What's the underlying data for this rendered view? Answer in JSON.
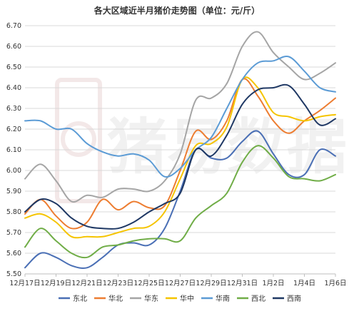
{
  "chart_data": {
    "type": "line",
    "title": "各大区域近半月猪价走势图（单位：元/斤）",
    "watermark": "猪易数据",
    "xlabel": "",
    "ylabel": "",
    "ylim": [
      5.5,
      6.7
    ],
    "y_ticks": [
      "5.50",
      "5.60",
      "5.70",
      "5.80",
      "5.90",
      "6.00",
      "6.10",
      "6.20",
      "6.30",
      "6.40",
      "6.50",
      "6.60",
      "6.70"
    ],
    "x": [
      "12月17日",
      "12月18日",
      "12月19日",
      "12月20日",
      "12月21日",
      "12月22日",
      "12月23日",
      "12月24日",
      "12月25日",
      "12月26日",
      "12月27日",
      "12月28日",
      "12月29日",
      "12月30日",
      "12月31日",
      "1月1日",
      "1月2日",
      "1月3日",
      "1月4日",
      "1月5日",
      "1月6日"
    ],
    "x_tick_labels": [
      "12月17日",
      "12月19日",
      "12月21日",
      "12月23日",
      "12月25日",
      "12月27日",
      "12月29日",
      "12月31日",
      "1月2日",
      "1月4日",
      "1月6日"
    ],
    "grid": true,
    "legend_position": "bottom",
    "series": [
      {
        "name": "东北",
        "color": "#4a6fb5",
        "values": [
          5.53,
          5.6,
          5.58,
          5.54,
          5.53,
          5.58,
          5.64,
          5.65,
          5.64,
          5.72,
          5.9,
          6.1,
          6.06,
          6.06,
          6.14,
          6.19,
          6.08,
          5.98,
          5.98,
          6.1,
          6.07
        ]
      },
      {
        "name": "华北",
        "color": "#ed7d31",
        "values": [
          5.79,
          5.86,
          5.78,
          5.72,
          5.75,
          5.86,
          5.81,
          5.85,
          5.82,
          5.83,
          6.0,
          6.19,
          6.15,
          6.24,
          6.44,
          6.36,
          6.24,
          6.18,
          6.24,
          6.29,
          6.35
        ]
      },
      {
        "name": "华东",
        "color": "#a5a5a5",
        "values": [
          5.96,
          6.03,
          5.95,
          5.85,
          5.88,
          5.87,
          5.91,
          5.91,
          5.9,
          5.95,
          6.08,
          6.34,
          6.35,
          6.42,
          6.6,
          6.67,
          6.57,
          6.5,
          6.44,
          6.47,
          6.52
        ]
      },
      {
        "name": "华中",
        "color": "#f5c400",
        "values": [
          5.77,
          5.79,
          5.75,
          5.68,
          5.68,
          5.68,
          5.7,
          5.72,
          5.73,
          5.8,
          5.96,
          6.12,
          6.13,
          6.21,
          6.44,
          6.4,
          6.28,
          6.26,
          6.24,
          6.26,
          6.27
        ]
      },
      {
        "name": "华南",
        "color": "#5b9bd5",
        "values": [
          6.24,
          6.24,
          6.2,
          6.2,
          6.13,
          6.09,
          6.07,
          6.08,
          6.05,
          5.97,
          6.01,
          6.1,
          6.16,
          6.3,
          6.44,
          6.52,
          6.53,
          6.55,
          6.48,
          6.4,
          6.38
        ]
      },
      {
        "name": "西北",
        "color": "#70ad47",
        "values": [
          5.63,
          5.72,
          5.66,
          5.6,
          5.58,
          5.63,
          5.64,
          5.66,
          5.67,
          5.67,
          5.66,
          5.77,
          5.83,
          5.89,
          6.04,
          6.12,
          6.06,
          5.97,
          5.96,
          5.95,
          5.98
        ]
      },
      {
        "name": "西南",
        "color": "#1f3864",
        "values": [
          5.8,
          5.86,
          5.84,
          5.77,
          5.73,
          5.72,
          5.72,
          5.75,
          5.8,
          5.84,
          5.89,
          6.1,
          6.07,
          6.17,
          6.32,
          6.39,
          6.4,
          6.41,
          6.32,
          6.22,
          6.25
        ]
      }
    ]
  }
}
